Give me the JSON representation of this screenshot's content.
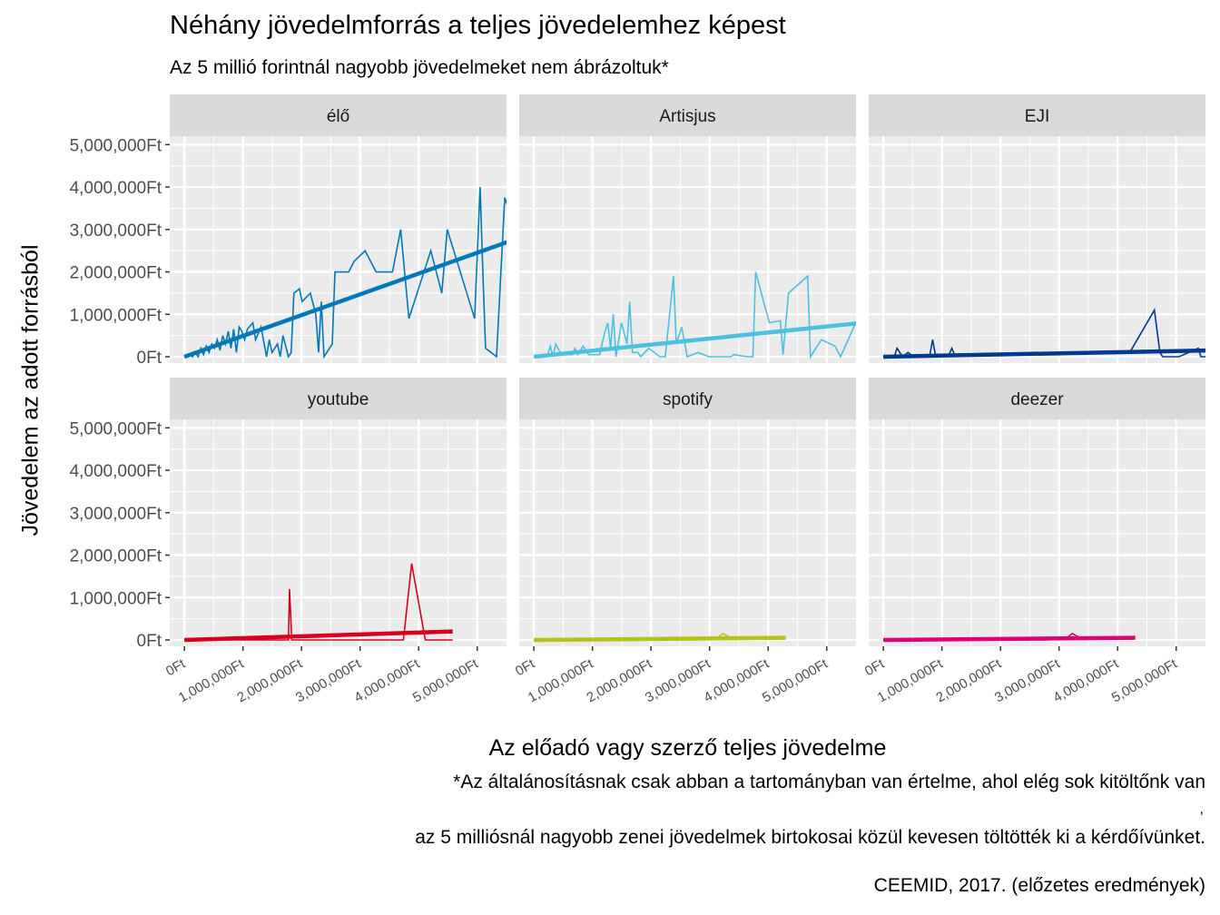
{
  "title": "Néhány jövedelmforrás a teljes jövedelemhez képest",
  "subtitle": "Az 5 millió forintnál nagyobb jövedelmeket nem ábrázoltuk*",
  "caption": {
    "line1": "*Az általánosításnak csak abban a tartományban van értelme, ahol elég sok kitöltőnk van",
    "comma": ",",
    "line2": "az 5 milliósnál nagyobb zenei jövedelmek birtokosai közül kevesen töltötték ki a kérdőívünket.",
    "source": "CEEMID, 2017. (előzetes eredmények)"
  },
  "chart_data": {
    "type": "line",
    "title": "Néhány jövedelmforrás a teljes jövedelemhez képest",
    "subtitle": "Az 5 millió forintnál nagyobb jövedelmeket nem ábrázoltuk*",
    "xlabel": "Az előadó vagy szerző teljes jövedelme",
    "ylabel": "Jövedelem az adott forrásból",
    "xlim": [
      -250000,
      5500000
    ],
    "ylim": [
      -150000,
      5200000
    ],
    "x_ticks": [
      0,
      1000000,
      2000000,
      3000000,
      4000000,
      5000000
    ],
    "x_tick_labels": [
      "0Ft",
      "1,000,000Ft",
      "2,000,000Ft",
      "3,000,000Ft",
      "4,000,000Ft",
      "5,000,000Ft"
    ],
    "y_ticks": [
      0,
      1000000,
      2000000,
      3000000,
      4000000,
      5000000
    ],
    "y_tick_labels": [
      "0Ft",
      "1,000,000Ft",
      "2,000,000Ft",
      "3,000,000Ft",
      "4,000,000Ft",
      "5,000,000Ft"
    ],
    "grid": true,
    "legend": "none",
    "facets": [
      {
        "name": "élő",
        "color": "#0077B6",
        "line": [
          [
            0,
            0
          ],
          [
            100000,
            50000
          ],
          [
            150000,
            0
          ],
          [
            200000,
            100000
          ],
          [
            250000,
            0
          ],
          [
            300000,
            200000
          ],
          [
            350000,
            50000
          ],
          [
            400000,
            250000
          ],
          [
            450000,
            100000
          ],
          [
            500000,
            300000
          ],
          [
            550000,
            200000
          ],
          [
            600000,
            400000
          ],
          [
            650000,
            150000
          ],
          [
            700000,
            500000
          ],
          [
            750000,
            300000
          ],
          [
            800000,
            600000
          ],
          [
            850000,
            200000
          ],
          [
            900000,
            650000
          ],
          [
            950000,
            100000
          ],
          [
            1000000,
            700000
          ],
          [
            1050000,
            600000
          ],
          [
            1100000,
            400000
          ],
          [
            1150000,
            650000
          ],
          [
            1250000,
            800000
          ],
          [
            1300000,
            400000
          ],
          [
            1400000,
            700000
          ],
          [
            1500000,
            0
          ],
          [
            1550000,
            400000
          ],
          [
            1600000,
            100000
          ],
          [
            1700000,
            300000
          ],
          [
            1750000,
            0
          ],
          [
            1800000,
            500000
          ],
          [
            1900000,
            0
          ],
          [
            1950000,
            100000
          ],
          [
            2000000,
            1500000
          ],
          [
            2100000,
            1600000
          ],
          [
            2150000,
            1300000
          ],
          [
            2300000,
            1500000
          ],
          [
            2400000,
            1000000
          ],
          [
            2450000,
            100000
          ],
          [
            2500000,
            1300000
          ],
          [
            2550000,
            0
          ],
          [
            2600000,
            100000
          ],
          [
            2700000,
            300000
          ],
          [
            2750000,
            2000000
          ],
          [
            3000000,
            2000000
          ],
          [
            3100000,
            2250000
          ],
          [
            3300000,
            2500000
          ],
          [
            3500000,
            2000000
          ],
          [
            3800000,
            2000000
          ],
          [
            3950000,
            3000000
          ],
          [
            4100000,
            900000
          ],
          [
            4500000,
            2500000
          ],
          [
            4700000,
            1500000
          ],
          [
            4800000,
            3000000
          ],
          [
            5300000,
            900000
          ],
          [
            5400000,
            4000000
          ],
          [
            5450000,
            2000000
          ],
          [
            5500000,
            200000
          ],
          [
            5600000,
            100000
          ],
          [
            5700000,
            0
          ],
          [
            5800000,
            2500000
          ],
          [
            5850000,
            3750000
          ],
          [
            6050000,
            3000000
          ]
        ],
        "trend": [
          [
            0,
            0
          ],
          [
            6000000,
            2750000
          ]
        ]
      },
      {
        "name": "Artisjus",
        "color": "#4DBFE0",
        "line": [
          [
            0,
            0
          ],
          [
            250000,
            50000
          ],
          [
            300000,
            250000
          ],
          [
            350000,
            0
          ],
          [
            400000,
            300000
          ],
          [
            500000,
            50000
          ],
          [
            700000,
            50000
          ],
          [
            750000,
            200000
          ],
          [
            800000,
            50000
          ],
          [
            900000,
            250000
          ],
          [
            1000000,
            50000
          ],
          [
            1200000,
            50000
          ],
          [
            1300000,
            600000
          ],
          [
            1350000,
            800000
          ],
          [
            1400000,
            200000
          ],
          [
            1450000,
            1000000
          ],
          [
            1500000,
            0
          ],
          [
            1600000,
            800000
          ],
          [
            1700000,
            300000
          ],
          [
            1750000,
            1300000
          ],
          [
            1800000,
            100000
          ],
          [
            1900000,
            100000
          ],
          [
            1950000,
            0
          ],
          [
            2100000,
            200000
          ],
          [
            2300000,
            0
          ],
          [
            2400000,
            0
          ],
          [
            2550000,
            1900000
          ],
          [
            2600000,
            300000
          ],
          [
            2700000,
            700000
          ],
          [
            2800000,
            0
          ],
          [
            2900000,
            50000
          ],
          [
            3000000,
            100000
          ],
          [
            3200000,
            0
          ],
          [
            3600000,
            0
          ],
          [
            3650000,
            50000
          ],
          [
            3900000,
            0
          ],
          [
            4000000,
            0
          ],
          [
            4050000,
            2000000
          ],
          [
            4300000,
            800000
          ],
          [
            4500000,
            850000
          ],
          [
            4550000,
            50000
          ],
          [
            4650000,
            1500000
          ],
          [
            5000000,
            1900000
          ],
          [
            5050000,
            0
          ],
          [
            5250000,
            400000
          ],
          [
            5500000,
            250000
          ],
          [
            5600000,
            0
          ],
          [
            6050000,
            1300000
          ]
        ],
        "trend": [
          [
            0,
            0
          ],
          [
            6000000,
            800000
          ]
        ]
      },
      {
        "name": "EJI",
        "color": "#003A8C",
        "line": [
          [
            0,
            0
          ],
          [
            200000,
            0
          ],
          [
            250000,
            200000
          ],
          [
            350000,
            0
          ],
          [
            450000,
            100000
          ],
          [
            550000,
            0
          ],
          [
            800000,
            0
          ],
          [
            850000,
            50000
          ],
          [
            900000,
            400000
          ],
          [
            950000,
            50000
          ],
          [
            1200000,
            50000
          ],
          [
            1250000,
            200000
          ],
          [
            1300000,
            50000
          ],
          [
            4500000,
            100000
          ],
          [
            4950000,
            1100000
          ],
          [
            5050000,
            100000
          ],
          [
            5100000,
            0
          ],
          [
            5400000,
            0
          ],
          [
            5750000,
            200000
          ],
          [
            5800000,
            0
          ],
          [
            6050000,
            0
          ]
        ],
        "trend": [
          [
            0,
            0
          ],
          [
            6000000,
            150000
          ]
        ]
      },
      {
        "name": "youtube",
        "color": "#D7001C",
        "line": [
          [
            0,
            0
          ],
          [
            1900000,
            0
          ],
          [
            1920000,
            1200000
          ],
          [
            1960000,
            0
          ],
          [
            4000000,
            0
          ],
          [
            4150000,
            1800000
          ],
          [
            4400000,
            0
          ],
          [
            4900000,
            0
          ]
        ],
        "trend": [
          [
            0,
            0
          ],
          [
            4900000,
            200000
          ]
        ]
      },
      {
        "name": "spotify",
        "color": "#B5C219",
        "line": [
          [
            0,
            0
          ],
          [
            3000000,
            0
          ],
          [
            3350000,
            50000
          ],
          [
            3450000,
            150000
          ],
          [
            3600000,
            50000
          ],
          [
            4600000,
            50000
          ]
        ],
        "trend": [
          [
            0,
            0
          ],
          [
            4600000,
            50000
          ]
        ]
      },
      {
        "name": "deezer",
        "color": "#E0007A",
        "line": [
          [
            0,
            0
          ],
          [
            3000000,
            0
          ],
          [
            3350000,
            50000
          ],
          [
            3450000,
            150000
          ],
          [
            3600000,
            50000
          ],
          [
            4600000,
            50000
          ]
        ],
        "trend": [
          [
            0,
            0
          ],
          [
            4600000,
            50000
          ]
        ]
      }
    ]
  }
}
